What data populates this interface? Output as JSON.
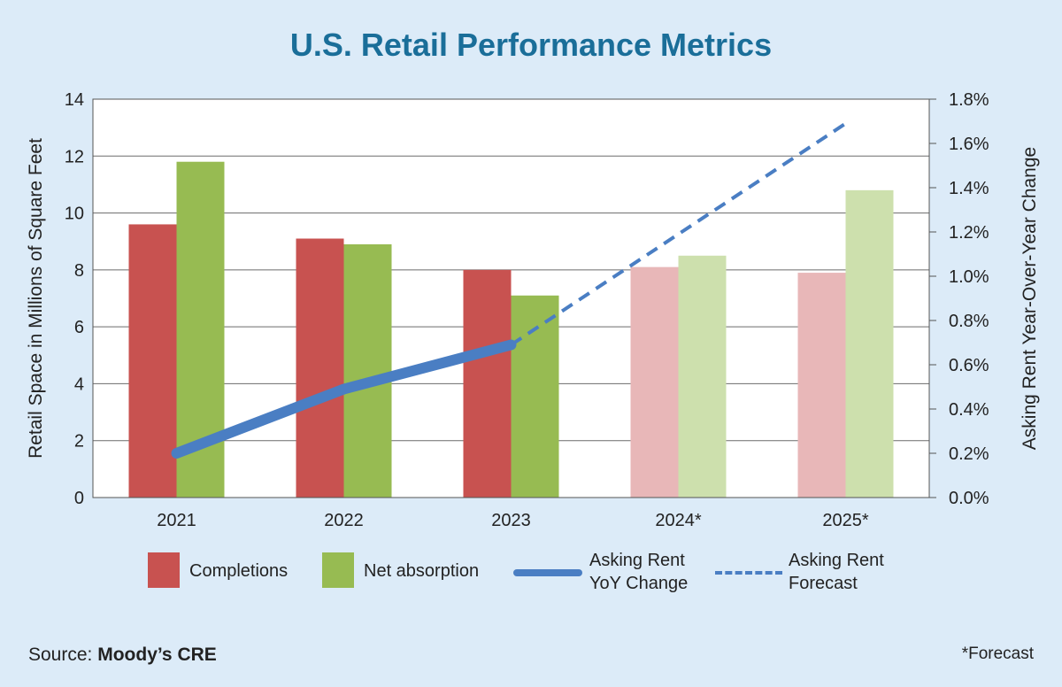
{
  "title": "U.S. Retail Performance Metrics",
  "source_label": "Source:",
  "source_name": "Moody’s CRE",
  "footnote": "*Forecast",
  "colors": {
    "completions": "#c85250",
    "completions_forecast": "#e8b7b8",
    "net_absorption": "#97bb52",
    "net_absorption_forecast": "#cde0ad",
    "rent_line": "#4a7ec3",
    "title": "#1a6e99"
  },
  "legend": {
    "completions": "Completions",
    "net_absorption": "Net absorption",
    "rent_line_1": "Asking Rent",
    "rent_line_2": "YoY Change",
    "rent_forecast_1": "Asking Rent",
    "rent_forecast_2": "Forecast"
  },
  "chart_data": {
    "type": "bar",
    "categories": [
      "2021",
      "2022",
      "2023",
      "2024*",
      "2025*"
    ],
    "forecast_categories": [
      "2024*",
      "2025*"
    ],
    "ylabel": "Retail Space in Millions of Square Feet",
    "y2label": "Asking Rent Year-Over-Year Change",
    "ylim": [
      0,
      14
    ],
    "yticks": [
      "0",
      "2",
      "4",
      "6",
      "8",
      "10",
      "12",
      "14"
    ],
    "y2lim": [
      0,
      1.8
    ],
    "y2ticks": [
      "0.0%",
      "0.2%",
      "0.4%",
      "0.6%",
      "0.8%",
      "1.0%",
      "1.2%",
      "1.4%",
      "1.6%",
      "1.8%"
    ],
    "grid": "horizontal",
    "series": [
      {
        "name": "Completions",
        "values": [
          9.6,
          9.1,
          8.0,
          8.1,
          7.9
        ]
      },
      {
        "name": "Net absorption",
        "values": [
          11.8,
          8.9,
          7.1,
          8.5,
          10.8
        ]
      }
    ],
    "line_series": [
      {
        "name": "Asking Rent YoY Change",
        "axis": "right",
        "x": [
          "2021",
          "2022",
          "2023"
        ],
        "values": [
          0.2,
          0.49,
          0.69
        ]
      },
      {
        "name": "Asking Rent Forecast",
        "axis": "right",
        "style": "dashed",
        "x": [
          "2023",
          "2025*"
        ],
        "values": [
          0.69,
          1.69
        ]
      }
    ]
  }
}
